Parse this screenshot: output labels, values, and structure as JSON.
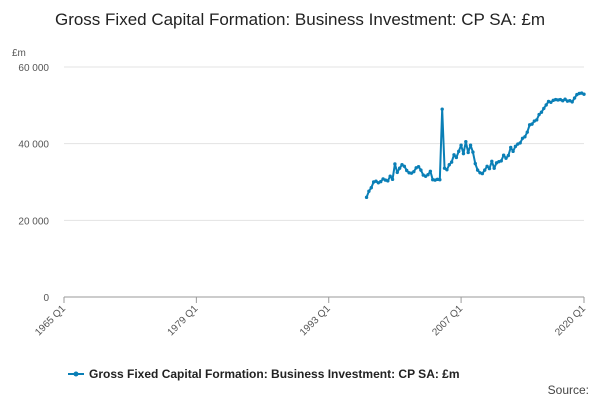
{
  "chart_data": {
    "type": "line",
    "title": "Gross Fixed Capital Formation: Business Investment: CP SA: £m",
    "ylabel": "£m",
    "xlabel": "",
    "ylim": [
      0,
      60000
    ],
    "yticks": [
      0,
      20000,
      40000,
      60000
    ],
    "ytick_labels": [
      "0",
      "20 000",
      "40 000",
      "60 000"
    ],
    "xticks": [
      "1965 Q1",
      "1979 Q1",
      "1993 Q1",
      "2007 Q1",
      "2020 Q1"
    ],
    "xlim": [
      "1965 Q1",
      "2020 Q1"
    ],
    "grid": "horizontal",
    "legend": "bottom",
    "source_label": "Source:",
    "series": [
      {
        "name": "Gross Fixed Capital Formation: Business Investment: CP SA: £m",
        "color": "#0a7fb6",
        "x": [
          "1997 Q1",
          "1997 Q2",
          "1997 Q3",
          "1997 Q4",
          "1998 Q1",
          "1998 Q2",
          "1998 Q3",
          "1998 Q4",
          "1999 Q1",
          "1999 Q2",
          "1999 Q3",
          "1999 Q4",
          "2000 Q1",
          "2000 Q2",
          "2000 Q3",
          "2000 Q4",
          "2001 Q1",
          "2001 Q2",
          "2001 Q3",
          "2001 Q4",
          "2002 Q1",
          "2002 Q2",
          "2002 Q3",
          "2002 Q4",
          "2003 Q1",
          "2003 Q2",
          "2003 Q3",
          "2003 Q4",
          "2004 Q1",
          "2004 Q2",
          "2004 Q3",
          "2004 Q4",
          "2005 Q1",
          "2005 Q2",
          "2005 Q3",
          "2005 Q4",
          "2006 Q1",
          "2006 Q2",
          "2006 Q3",
          "2006 Q4",
          "2007 Q1",
          "2007 Q2",
          "2007 Q3",
          "2007 Q4",
          "2008 Q1",
          "2008 Q2",
          "2008 Q3",
          "2008 Q4",
          "2009 Q1",
          "2009 Q2",
          "2009 Q3",
          "2009 Q4",
          "2010 Q1",
          "2010 Q2",
          "2010 Q3",
          "2010 Q4",
          "2011 Q1",
          "2011 Q2",
          "2011 Q3",
          "2011 Q4",
          "2012 Q1",
          "2012 Q2",
          "2012 Q3",
          "2012 Q4",
          "2013 Q1",
          "2013 Q2",
          "2013 Q3",
          "2013 Q4",
          "2014 Q1",
          "2014 Q2",
          "2014 Q3",
          "2014 Q4",
          "2015 Q1",
          "2015 Q2",
          "2015 Q3",
          "2015 Q4",
          "2016 Q1",
          "2016 Q2",
          "2016 Q3",
          "2016 Q4",
          "2017 Q1",
          "2017 Q2",
          "2017 Q3",
          "2017 Q4",
          "2018 Q1",
          "2018 Q2",
          "2018 Q3",
          "2018 Q4",
          "2019 Q1",
          "2019 Q2",
          "2019 Q3",
          "2019 Q4",
          "2020 Q1"
        ],
        "values": [
          26000,
          27600,
          28500,
          30000,
          30200,
          29800,
          30100,
          30800,
          30500,
          30300,
          31500,
          30700,
          34700,
          32500,
          33600,
          34500,
          34100,
          33000,
          32400,
          32300,
          32700,
          33700,
          34000,
          33100,
          31800,
          31500,
          31900,
          32800,
          30600,
          30500,
          30700,
          30600,
          49000,
          33600,
          33200,
          34500,
          35200,
          37100,
          36400,
          38000,
          39600,
          37400,
          40500,
          37700,
          39600,
          37800,
          34800,
          33100,
          32400,
          32200,
          33100,
          34100,
          33500,
          35400,
          33600,
          35000,
          35300,
          35500,
          37000,
          36200,
          36900,
          39000,
          38000,
          39300,
          39900,
          40200,
          41400,
          41800,
          43000,
          44900,
          45100,
          45900,
          46200,
          47600,
          48200,
          49200,
          50100,
          51000,
          50800,
          51300,
          51500,
          51400,
          51500,
          51200,
          51600,
          51100,
          51200,
          50900,
          51900,
          52800,
          53100,
          53200,
          52900
        ]
      }
    ]
  }
}
